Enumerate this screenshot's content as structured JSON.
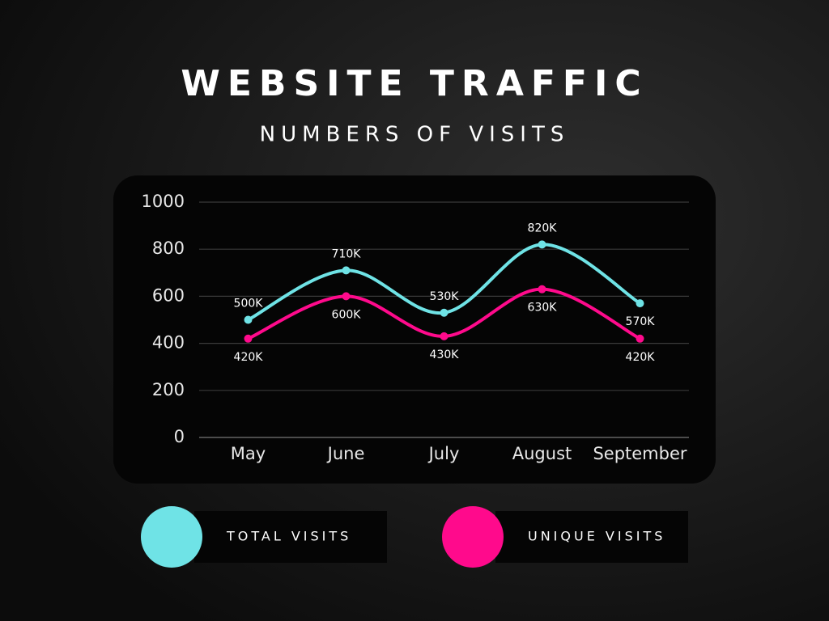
{
  "chart_data": {
    "type": "line",
    "title": "WEBSITE TRAFFIC",
    "subtitle": "NUMBERS OF VISITS",
    "categories": [
      "May",
      "June",
      "July",
      "August",
      "September"
    ],
    "series": [
      {
        "name": "TOTAL VISITS",
        "color": "#6fe3e6",
        "values": [
          500,
          710,
          530,
          820,
          570
        ],
        "value_labels": [
          "500K",
          "710K",
          "530K",
          "820K",
          "570K"
        ]
      },
      {
        "name": "UNIQUE VISITS",
        "color": "#ff0a8c",
        "values": [
          420,
          600,
          430,
          630,
          420
        ],
        "value_labels": [
          "420K",
          "600K",
          "430K",
          "630K",
          "420K"
        ]
      }
    ],
    "ylim": [
      0,
      1000
    ],
    "yticks": [
      0,
      200,
      400,
      600,
      800,
      1000
    ],
    "grid": true
  }
}
